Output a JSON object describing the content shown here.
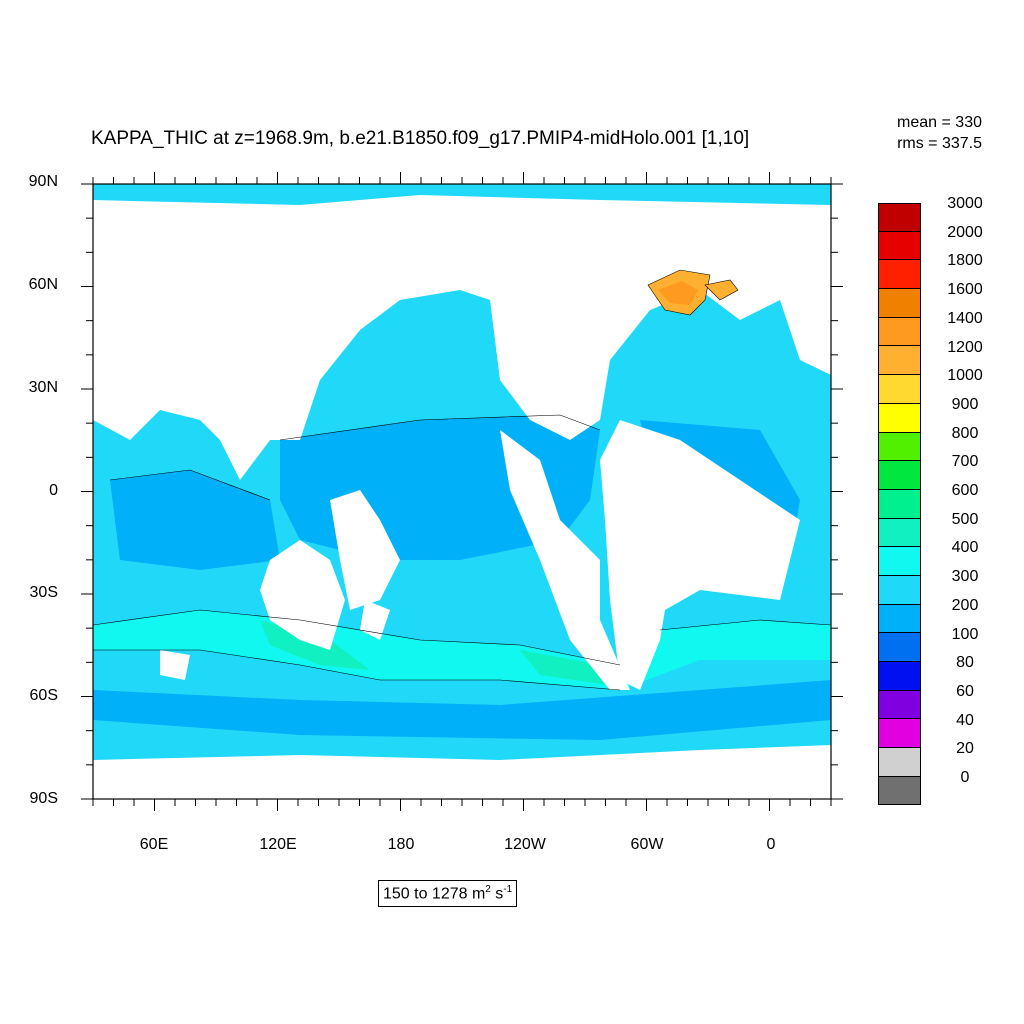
{
  "title": "KAPPA_THIC at z=1968.9m, b.e21.B1850.f09_g17.PMIP4-midHolo.001 [1,10]",
  "stats": {
    "mean": "mean = 330",
    "rms": "rms = 337.5"
  },
  "range": {
    "text": "150 to 1278 m",
    "unit_sup1": "2",
    "unit_s": " s",
    "unit_sup2": "-1"
  },
  "lat_labels": [
    "90N",
    "60N",
    "30N",
    "0",
    "30S",
    "60S",
    "90S"
  ],
  "lon_labels": [
    "60E",
    "120E",
    "180",
    "120W",
    "60W",
    "0"
  ],
  "colorbar": {
    "labels": [
      "3000",
      "2000",
      "1800",
      "1600",
      "1400",
      "1200",
      "1000",
      "900",
      "800",
      "700",
      "600",
      "500",
      "400",
      "300",
      "200",
      "100",
      "80",
      "60",
      "40",
      "20",
      "0"
    ],
    "colors": [
      "#c00000",
      "#e60000",
      "#ff2000",
      "#f08000",
      "#ff9a20",
      "#ffb030",
      "#ffd830",
      "#ffff00",
      "#50f000",
      "#00e840",
      "#00f090",
      "#10f0c0",
      "#10f8f0",
      "#20d8f8",
      "#00b0f8",
      "#0070f0",
      "#0010f0",
      "#8000e0",
      "#e000e0",
      "#d0d0d0",
      "#707070"
    ]
  },
  "map_colors": {
    "ocean_base": "#20d8f8",
    "ocean_300": "#00b0f8",
    "ocean_500": "#10f8f0",
    "ocean_600": "#10f0c0",
    "land": "#ffffff",
    "hot": "#ff9a20",
    "warm": "#ffb030"
  }
}
